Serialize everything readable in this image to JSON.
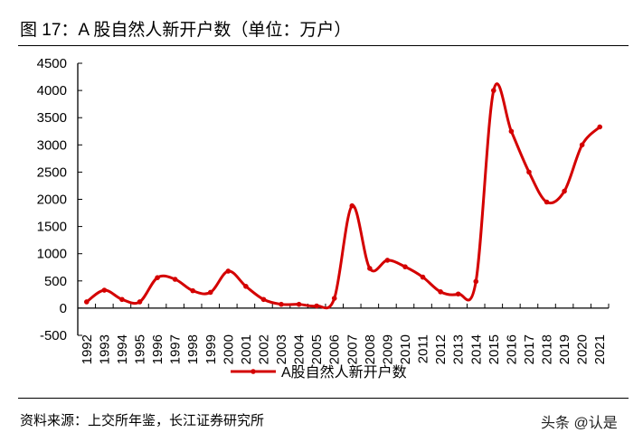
{
  "title": "图  17：A 股自然人新开户数（单位：万户）",
  "source": "资料来源：上交所年鉴，长江证券研究所",
  "watermark": "头条 @认是",
  "chart_data": {
    "type": "line",
    "title": "A 股自然人新开户数（单位：万户）",
    "xlabel": "",
    "ylabel": "",
    "categories": [
      "1992",
      "1993",
      "1994",
      "1995",
      "1996",
      "1997",
      "1998",
      "1999",
      "2000",
      "2001",
      "2002",
      "2003",
      "2004",
      "2005",
      "2006",
      "2007",
      "2008",
      "2009",
      "2010",
      "2011",
      "2012",
      "2013",
      "2014",
      "2015",
      "2016",
      "2017",
      "2018",
      "2019",
      "2020",
      "2021"
    ],
    "series": [
      {
        "name": "A股自然人新开户数",
        "color": "#d40000",
        "values": [
          115,
          330,
          160,
          115,
          560,
          530,
          320,
          290,
          680,
          400,
          160,
          70,
          70,
          40,
          180,
          1880,
          730,
          880,
          760,
          570,
          300,
          260,
          490,
          4000,
          3250,
          2500,
          1950,
          2150,
          3000,
          3330
        ]
      }
    ],
    "ylim": [
      -500,
      4500
    ],
    "yticks": [
      -500,
      0,
      500,
      1000,
      1500,
      2000,
      2500,
      3000,
      3500,
      4000,
      4500
    ],
    "grid": false,
    "legend": "bottom"
  }
}
